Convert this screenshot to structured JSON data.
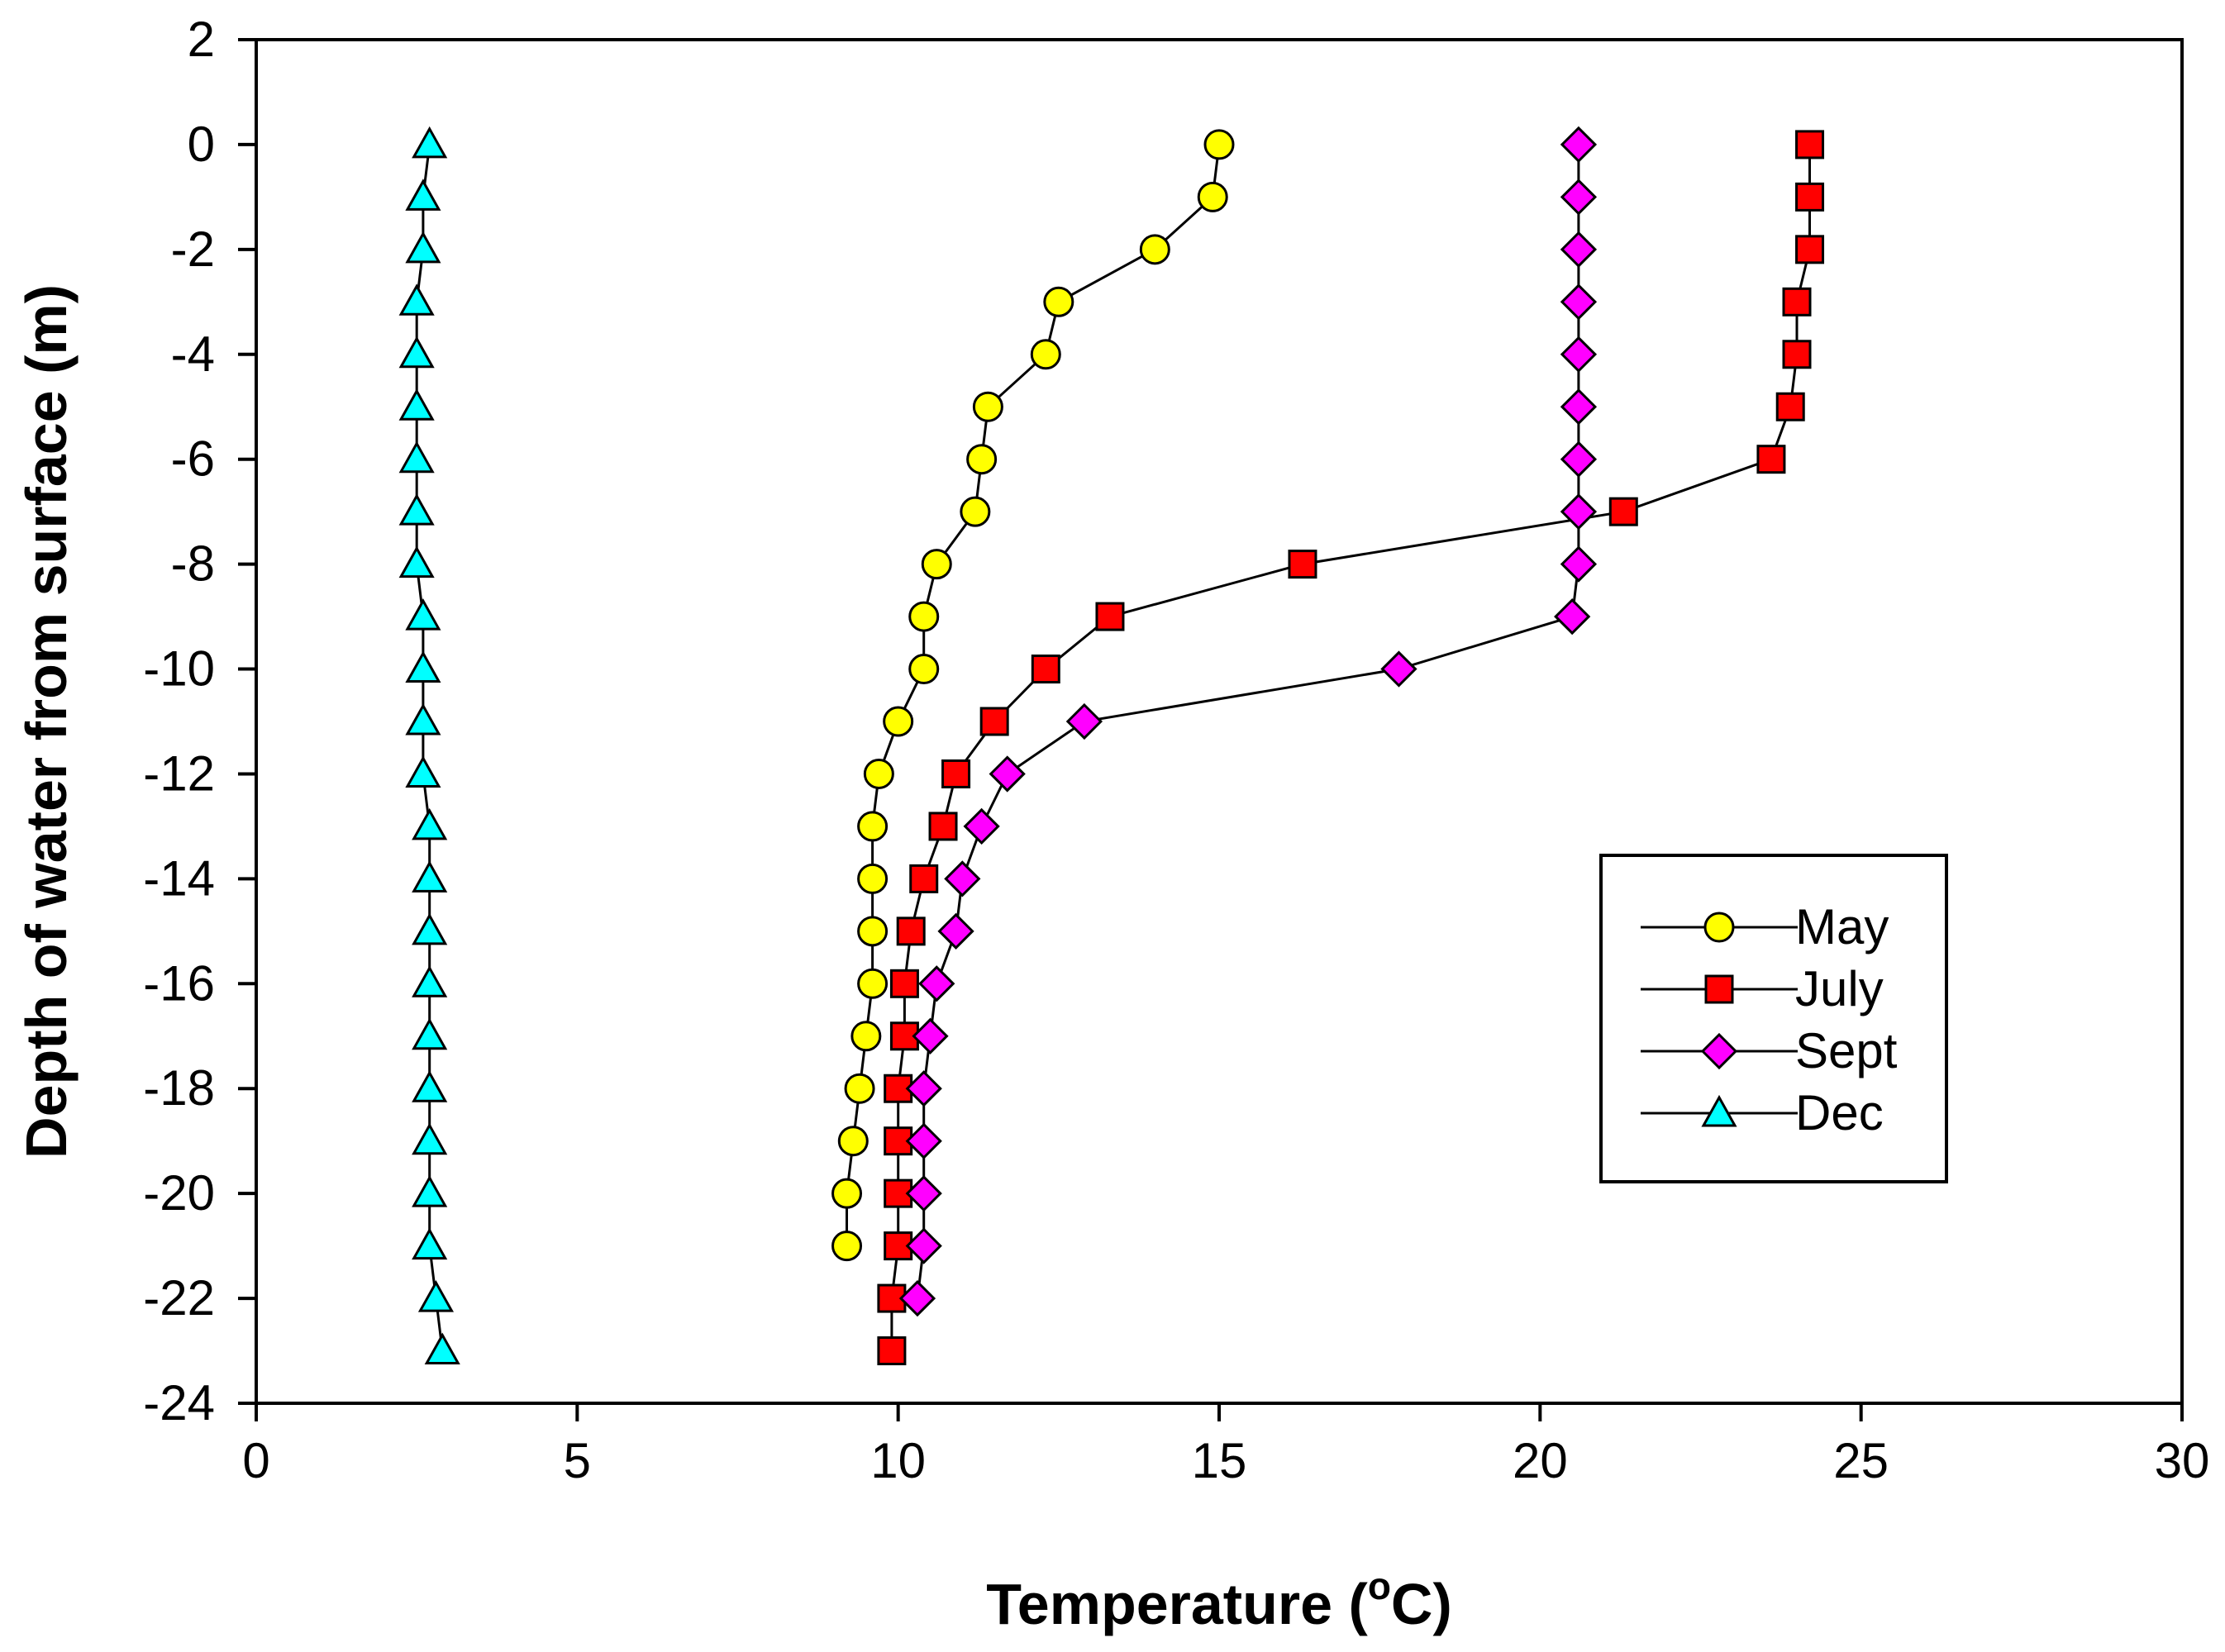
{
  "chart_data": {
    "type": "line",
    "title": "",
    "xlabel_prefix": "Temperature (",
    "xlabel_sup": "o",
    "xlabel_suffix": "C)",
    "ylabel": "Depth of water from surface (m)",
    "xlim": [
      0,
      30
    ],
    "ylim": [
      -24,
      2
    ],
    "xticks": [
      0,
      5,
      10,
      15,
      20,
      25,
      30
    ],
    "yticks": [
      2,
      0,
      -2,
      -4,
      -6,
      -8,
      -10,
      -12,
      -14,
      -16,
      -18,
      -20,
      -22,
      -24
    ],
    "grid": false,
    "legend_position": "right",
    "series": [
      {
        "name": "May",
        "marker": "circle",
        "color": "#ffff00",
        "points": [
          [
            15.0,
            0
          ],
          [
            14.9,
            -1
          ],
          [
            14.0,
            -2
          ],
          [
            12.5,
            -3
          ],
          [
            12.3,
            -4
          ],
          [
            11.4,
            -5
          ],
          [
            11.3,
            -6
          ],
          [
            11.2,
            -7
          ],
          [
            10.6,
            -8
          ],
          [
            10.4,
            -9
          ],
          [
            10.4,
            -10
          ],
          [
            10.0,
            -11
          ],
          [
            9.7,
            -12
          ],
          [
            9.6,
            -13
          ],
          [
            9.6,
            -14
          ],
          [
            9.6,
            -15
          ],
          [
            9.6,
            -16
          ],
          [
            9.5,
            -17
          ],
          [
            9.4,
            -18
          ],
          [
            9.3,
            -19
          ],
          [
            9.2,
            -20
          ],
          [
            9.2,
            -21
          ]
        ]
      },
      {
        "name": "July",
        "marker": "square",
        "color": "#ff0000",
        "points": [
          [
            24.2,
            0
          ],
          [
            24.2,
            -1
          ],
          [
            24.2,
            -2
          ],
          [
            24.0,
            -3
          ],
          [
            24.0,
            -4
          ],
          [
            23.9,
            -5
          ],
          [
            23.6,
            -6
          ],
          [
            21.3,
            -7
          ],
          [
            16.3,
            -8
          ],
          [
            13.3,
            -9
          ],
          [
            12.3,
            -10
          ],
          [
            11.5,
            -11
          ],
          [
            10.9,
            -12
          ],
          [
            10.7,
            -13
          ],
          [
            10.4,
            -14
          ],
          [
            10.2,
            -15
          ],
          [
            10.1,
            -16
          ],
          [
            10.1,
            -17
          ],
          [
            10.0,
            -18
          ],
          [
            10.0,
            -19
          ],
          [
            10.0,
            -20
          ],
          [
            10.0,
            -21
          ],
          [
            9.9,
            -22
          ],
          [
            9.9,
            -23
          ]
        ]
      },
      {
        "name": "Sept",
        "marker": "diamond",
        "color": "#ff00ff",
        "points": [
          [
            20.6,
            0
          ],
          [
            20.6,
            -1
          ],
          [
            20.6,
            -2
          ],
          [
            20.6,
            -3
          ],
          [
            20.6,
            -4
          ],
          [
            20.6,
            -5
          ],
          [
            20.6,
            -6
          ],
          [
            20.6,
            -7
          ],
          [
            20.6,
            -8
          ],
          [
            20.5,
            -9
          ],
          [
            17.8,
            -10
          ],
          [
            12.9,
            -11
          ],
          [
            11.7,
            -12
          ],
          [
            11.3,
            -13
          ],
          [
            11.0,
            -14
          ],
          [
            10.9,
            -15
          ],
          [
            10.6,
            -16
          ],
          [
            10.5,
            -17
          ],
          [
            10.4,
            -18
          ],
          [
            10.4,
            -19
          ],
          [
            10.4,
            -20
          ],
          [
            10.4,
            -21
          ],
          [
            10.3,
            -22
          ]
        ]
      },
      {
        "name": "Dec",
        "marker": "triangle",
        "color": "#00ffff",
        "points": [
          [
            2.7,
            0
          ],
          [
            2.6,
            -1
          ],
          [
            2.6,
            -2
          ],
          [
            2.5,
            -3
          ],
          [
            2.5,
            -4
          ],
          [
            2.5,
            -5
          ],
          [
            2.5,
            -6
          ],
          [
            2.5,
            -7
          ],
          [
            2.5,
            -8
          ],
          [
            2.6,
            -9
          ],
          [
            2.6,
            -10
          ],
          [
            2.6,
            -11
          ],
          [
            2.6,
            -12
          ],
          [
            2.7,
            -13
          ],
          [
            2.7,
            -14
          ],
          [
            2.7,
            -15
          ],
          [
            2.7,
            -16
          ],
          [
            2.7,
            -17
          ],
          [
            2.7,
            -18
          ],
          [
            2.7,
            -19
          ],
          [
            2.7,
            -20
          ],
          [
            2.7,
            -21
          ],
          [
            2.8,
            -22
          ],
          [
            2.9,
            -23
          ]
        ]
      }
    ]
  }
}
